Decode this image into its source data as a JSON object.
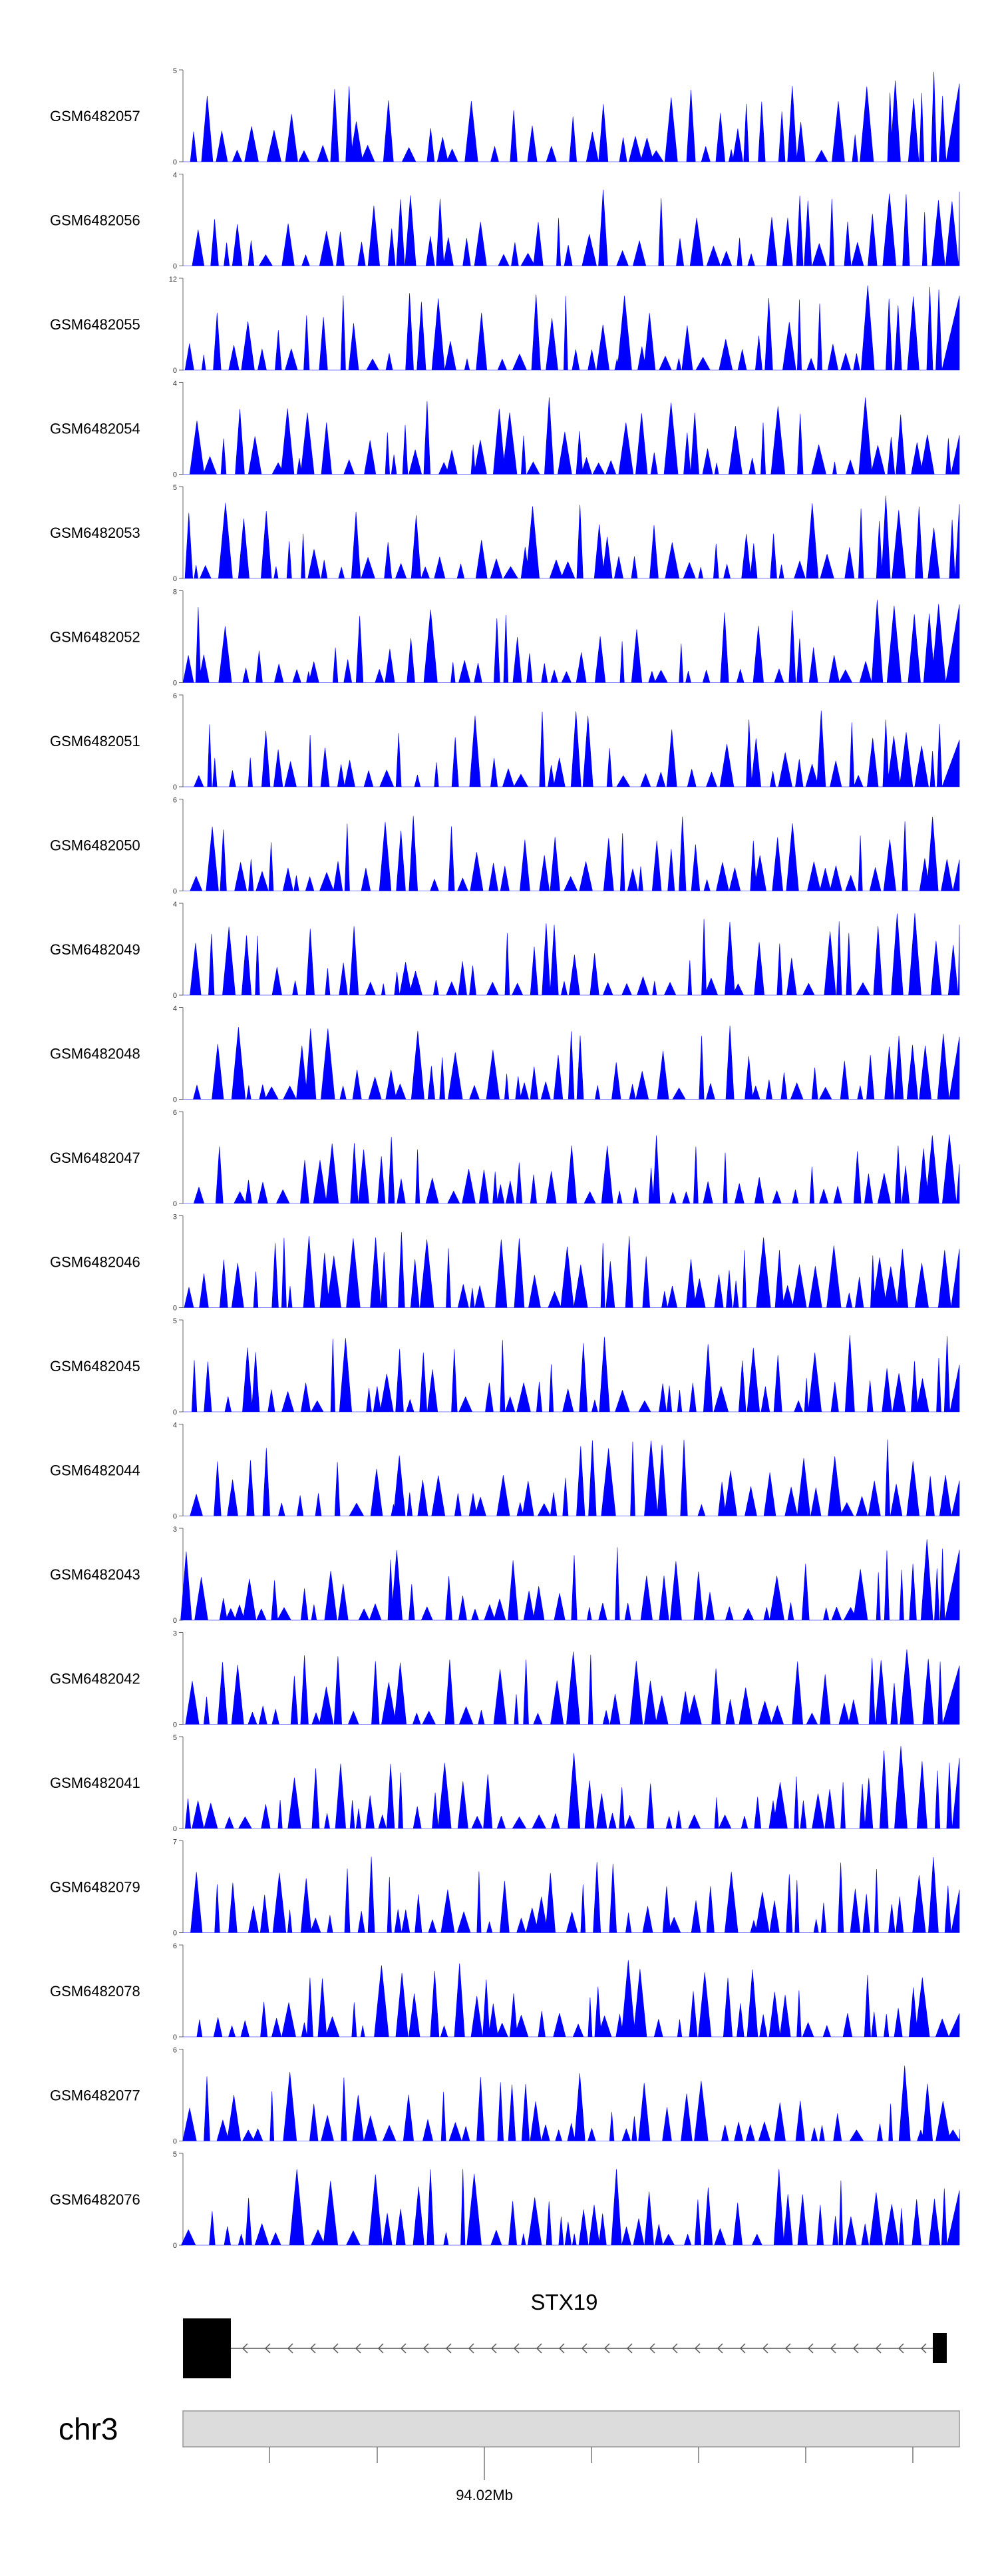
{
  "chart_data": {
    "type": "area",
    "title": "",
    "fill_color": "#0000ff",
    "gene_color": "#000000",
    "ideogram_color": "#dcdcdc",
    "tracks": [
      {
        "name": "GSM6482057",
        "ymax": "5",
        "ymin": "0",
        "ylim": [
          0,
          5
        ],
        "seed": 1,
        "end_peak": 1.0
      },
      {
        "name": "GSM6482056",
        "ymax": "4",
        "ymin": "0",
        "ylim": [
          0,
          4
        ],
        "seed": 2,
        "end_peak": 0.95
      },
      {
        "name": "GSM6482055",
        "ymax": "12",
        "ymin": "0",
        "ylim": [
          0,
          12
        ],
        "seed": 3,
        "end_peak": 0.95
      },
      {
        "name": "GSM6482054",
        "ymax": "4",
        "ymin": "0",
        "ylim": [
          0,
          4
        ],
        "seed": 4,
        "end_peak": 0.5
      },
      {
        "name": "GSM6482053",
        "ymax": "5",
        "ymin": "0",
        "ylim": [
          0,
          5
        ],
        "seed": 5,
        "end_peak": 0.95
      },
      {
        "name": "GSM6482052",
        "ymax": "8",
        "ymin": "0",
        "ylim": [
          0,
          8
        ],
        "seed": 6,
        "end_peak": 1.0
      },
      {
        "name": "GSM6482051",
        "ymax": "6",
        "ymin": "0",
        "ylim": [
          0,
          6
        ],
        "seed": 7,
        "end_peak": 0.6
      },
      {
        "name": "GSM6482050",
        "ymax": "6",
        "ymin": "0",
        "ylim": [
          0,
          6
        ],
        "seed": 8,
        "end_peak": 0.4
      },
      {
        "name": "GSM6482049",
        "ymax": "4",
        "ymin": "0",
        "ylim": [
          0,
          4
        ],
        "seed": 9,
        "end_peak": 0.9
      },
      {
        "name": "GSM6482048",
        "ymax": "4",
        "ymin": "0",
        "ylim": [
          0,
          4
        ],
        "seed": 10,
        "end_peak": 0.8
      },
      {
        "name": "GSM6482047",
        "ymax": "6",
        "ymin": "0",
        "ylim": [
          0,
          6
        ],
        "seed": 11,
        "end_peak": 0.5
      },
      {
        "name": "GSM6482046",
        "ymax": "3",
        "ymin": "0",
        "ylim": [
          0,
          3
        ],
        "seed": 12,
        "end_peak": 0.75
      },
      {
        "name": "GSM6482045",
        "ymax": "5",
        "ymin": "0",
        "ylim": [
          0,
          5
        ],
        "seed": 13,
        "end_peak": 0.6
      },
      {
        "name": "GSM6482044",
        "ymax": "4",
        "ymin": "0",
        "ylim": [
          0,
          4
        ],
        "seed": 14,
        "end_peak": 0.45
      },
      {
        "name": "GSM6482043",
        "ymax": "3",
        "ymin": "0",
        "ylim": [
          0,
          3
        ],
        "seed": 15,
        "end_peak": 0.9
      },
      {
        "name": "GSM6482042",
        "ymax": "3",
        "ymin": "0",
        "ylim": [
          0,
          3
        ],
        "seed": 16,
        "end_peak": 0.75
      },
      {
        "name": "GSM6482041",
        "ymax": "5",
        "ymin": "0",
        "ylim": [
          0,
          5
        ],
        "seed": 17,
        "end_peak": 0.9
      },
      {
        "name": "GSM6482079",
        "ymax": "7",
        "ymin": "0",
        "ylim": [
          0,
          7
        ],
        "seed": 18,
        "end_peak": 0.55
      },
      {
        "name": "GSM6482078",
        "ymax": "6",
        "ymin": "0",
        "ylim": [
          0,
          6
        ],
        "seed": 19,
        "end_peak": 0.3
      },
      {
        "name": "GSM6482077",
        "ymax": "6",
        "ymin": "0",
        "ylim": [
          0,
          6
        ],
        "seed": 20,
        "end_peak": 0.15
      },
      {
        "name": "GSM6482076",
        "ymax": "5",
        "ymin": "0",
        "ylim": [
          0,
          5
        ],
        "seed": 21,
        "end_peak": 0.7
      }
    ],
    "gene": {
      "name": "STX19",
      "strand": "-",
      "exons": 2
    },
    "chromosome": "chr3",
    "axis_label": "94.02Mb",
    "axis_ticks": 8
  }
}
